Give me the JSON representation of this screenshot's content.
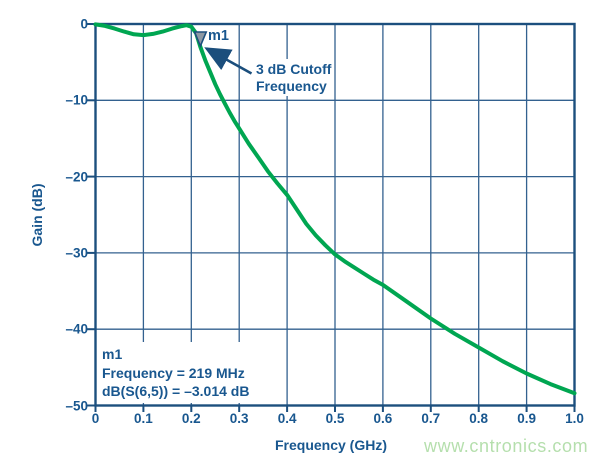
{
  "chart_data": {
    "type": "line",
    "title": "",
    "xlabel": "Frequency (GHz)",
    "ylabel": "Gain (dB)",
    "xlim": [
      0,
      1.0
    ],
    "ylim": [
      -50,
      0
    ],
    "grid": true,
    "x_ticks": {
      "values": [
        0,
        0.1,
        0.2,
        0.3,
        0.4,
        0.5,
        0.6,
        0.7,
        0.8,
        0.9,
        1.0
      ],
      "labels": [
        "0",
        "0.1",
        "0.2",
        "0.3",
        "0.4",
        "0.5",
        "0.6",
        "0.7",
        "0.8",
        "0.9",
        "1.0"
      ]
    },
    "y_ticks": {
      "values": [
        0,
        -10,
        -20,
        -30,
        -40,
        -50
      ],
      "labels": [
        "0",
        "–10",
        "–20",
        "–30",
        "–40",
        "–50"
      ]
    },
    "series": [
      {
        "name": "dB(S(6,5))",
        "color": "#00A651",
        "x": [
          0,
          0.02,
          0.04,
          0.06,
          0.08,
          0.1,
          0.12,
          0.14,
          0.16,
          0.18,
          0.19,
          0.2,
          0.21,
          0.219,
          0.23,
          0.24,
          0.25,
          0.26,
          0.27,
          0.28,
          0.29,
          0.3,
          0.32,
          0.34,
          0.36,
          0.38,
          0.4,
          0.42,
          0.44,
          0.46,
          0.48,
          0.5,
          0.52,
          0.54,
          0.56,
          0.58,
          0.6,
          0.65,
          0.7,
          0.75,
          0.8,
          0.85,
          0.9,
          0.95,
          1.0
        ],
        "y": [
          -0.05,
          -0.25,
          -0.6,
          -1.0,
          -1.35,
          -1.45,
          -1.3,
          -1.0,
          -0.6,
          -0.28,
          -0.16,
          -0.35,
          -1.2,
          -3.014,
          -4.9,
          -6.4,
          -7.9,
          -9.2,
          -10.4,
          -11.6,
          -12.7,
          -13.7,
          -15.7,
          -17.5,
          -19.3,
          -20.9,
          -22.4,
          -24.3,
          -26.2,
          -27.7,
          -29.0,
          -30.2,
          -31.1,
          -31.9,
          -32.7,
          -33.5,
          -34.2,
          -36.4,
          -38.6,
          -40.6,
          -42.4,
          -44.2,
          -45.8,
          -47.2,
          -48.4
        ]
      }
    ],
    "marker": {
      "id": "m1",
      "label": "m1",
      "x": 0.219,
      "y": -3.014
    }
  },
  "annotation": {
    "line1": "3 dB Cutoff",
    "line2": "Frequency"
  },
  "marker_box": {
    "line1": "m1",
    "line2": "Frequency = 219 MHz",
    "line3": "dB(S(6,5)) = –3.014 dB"
  },
  "watermark": "www.cntronics.com",
  "colors": {
    "curve": "#00A651",
    "grid": "#33618F",
    "axis_border": "#1C4F7E",
    "text": "#19578F",
    "arrow": "#1B4E7C",
    "marker_fill": "#8C98A4",
    "watermark": "#B5DFAD",
    "background": "#FFFFFF"
  }
}
